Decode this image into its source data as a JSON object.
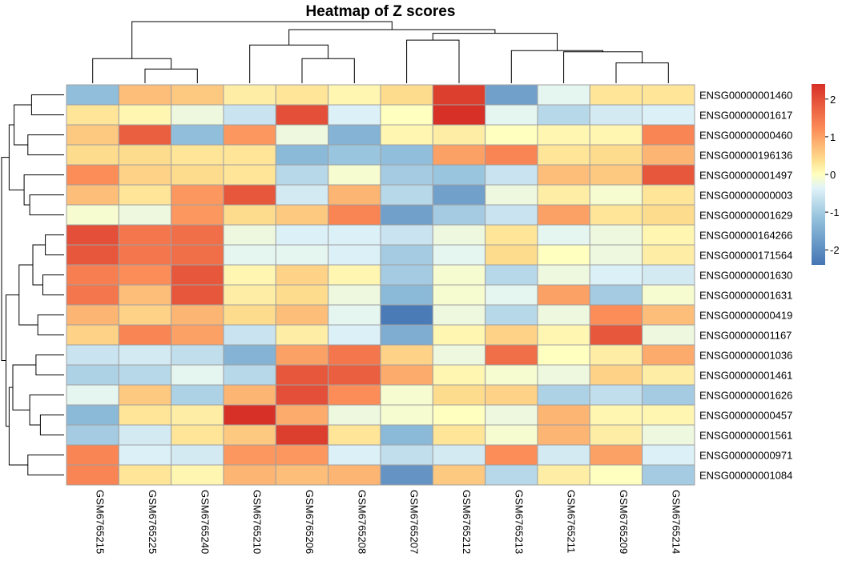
{
  "chart_data": {
    "type": "heatmap",
    "title": "Heatmap of Z scores",
    "columns": [
      "GSM6765215",
      "GSM6765225",
      "GSM6765240",
      "GSM6765210",
      "GSM6765206",
      "GSM6765208",
      "GSM6765207",
      "GSM6765212",
      "GSM6765213",
      "GSM6765211",
      "GSM6765209",
      "GSM6765214"
    ],
    "rows": [
      "ENSG00000001460",
      "ENSG00000001617",
      "ENSG00000000460",
      "ENSG00000196136",
      "ENSG00000001497",
      "ENSG00000000003",
      "ENSG00000001629",
      "ENSG00000164266",
      "ENSG00000171564",
      "ENSG00000001630",
      "ENSG00000001631",
      "ENSG00000000419",
      "ENSG00000001167",
      "ENSG00000001036",
      "ENSG00000001461",
      "ENSG00000001626",
      "ENSG00000000457",
      "ENSG00000001561",
      "ENSG00000000971",
      "ENSG00000001084"
    ],
    "values": [
      [
        -1.2,
        0.7,
        0.6,
        0.2,
        0.3,
        0.1,
        0.4,
        2.2,
        -1.7,
        -0.3,
        0.3,
        0.3
      ],
      [
        0.3,
        0.1,
        -0.2,
        -0.6,
        2.0,
        -0.4,
        0.0,
        2.4,
        -0.3,
        -0.8,
        -0.5,
        -0.4
      ],
      [
        0.6,
        1.8,
        -1.2,
        1.1,
        -0.2,
        -1.4,
        0.1,
        0.2,
        0.0,
        0.1,
        0.1,
        1.3
      ],
      [
        0.4,
        0.4,
        0.3,
        0.3,
        -1.3,
        -1.1,
        -1.2,
        1.0,
        1.3,
        0.3,
        0.4,
        0.8
      ],
      [
        1.2,
        0.5,
        0.4,
        0.3,
        -0.8,
        -0.1,
        -1.0,
        -1.1,
        -0.6,
        0.7,
        0.6,
        1.9
      ],
      [
        0.7,
        0.3,
        1.1,
        1.9,
        -0.5,
        0.8,
        -0.8,
        -1.7,
        -0.2,
        0.2,
        -0.1,
        0.3
      ],
      [
        -0.1,
        -0.2,
        1.1,
        0.4,
        0.6,
        1.3,
        -1.7,
        -1.0,
        -0.6,
        1.0,
        0.3,
        0.4
      ],
      [
        2.0,
        1.5,
        1.6,
        -0.2,
        -0.4,
        -0.4,
        -0.6,
        -0.2,
        0.3,
        -0.3,
        -0.2,
        0.1
      ],
      [
        1.9,
        1.5,
        1.6,
        -0.3,
        -0.3,
        -0.4,
        -1.0,
        -0.3,
        0.4,
        0.0,
        -0.2,
        0.2
      ],
      [
        1.4,
        1.2,
        1.9,
        0.1,
        0.5,
        0.1,
        -1.0,
        -0.1,
        -0.8,
        -0.2,
        -0.4,
        -0.5
      ],
      [
        1.5,
        0.7,
        1.9,
        0.2,
        0.4,
        -0.2,
        -1.3,
        -0.1,
        -0.3,
        1.0,
        -1.0,
        -0.1
      ],
      [
        0.8,
        0.5,
        0.8,
        0.4,
        0.7,
        -0.3,
        -2.3,
        -0.2,
        -0.8,
        -0.2,
        1.2,
        0.7
      ],
      [
        0.5,
        1.3,
        1.0,
        -0.6,
        0.2,
        -0.4,
        -1.5,
        0.1,
        0.5,
        0.1,
        1.9,
        -0.2
      ],
      [
        -0.6,
        -0.5,
        -0.7,
        -1.4,
        1.0,
        1.5,
        0.5,
        -0.2,
        1.6,
        0.0,
        0.2,
        0.9
      ],
      [
        -0.9,
        -0.8,
        -0.3,
        -0.8,
        1.9,
        1.8,
        0.9,
        0.1,
        -0.1,
        -0.2,
        0.5,
        0.2
      ],
      [
        -0.3,
        0.6,
        -0.9,
        0.8,
        2.0,
        1.2,
        -0.1,
        0.4,
        0.5,
        -0.9,
        -0.7,
        -1.0
      ],
      [
        -1.3,
        0.3,
        0.2,
        2.4,
        0.9,
        -0.2,
        -0.1,
        0.0,
        -0.2,
        0.8,
        0.1,
        0.1
      ],
      [
        -1.0,
        -0.5,
        0.3,
        0.6,
        2.2,
        0.3,
        -1.3,
        0.3,
        -0.1,
        0.8,
        0.2,
        -0.2
      ],
      [
        1.3,
        -0.4,
        -0.5,
        1.1,
        1.1,
        -0.4,
        -0.7,
        -0.5,
        1.2,
        -0.5,
        1.0,
        -0.4
      ],
      [
        1.3,
        0.3,
        0.1,
        0.8,
        0.7,
        0.8,
        -1.9,
        0.6,
        -0.8,
        0.2,
        0.0,
        -1.0
      ]
    ],
    "legend": {
      "ticks": [
        2,
        1,
        0,
        -1,
        -2
      ],
      "min": -2.4,
      "max": 2.4
    },
    "colors": {
      "low": "#4575b4",
      "mid": "#ffffbf",
      "high": "#d73027",
      "cell_border": "#a0a0a0",
      "tree": "#000000"
    }
  }
}
